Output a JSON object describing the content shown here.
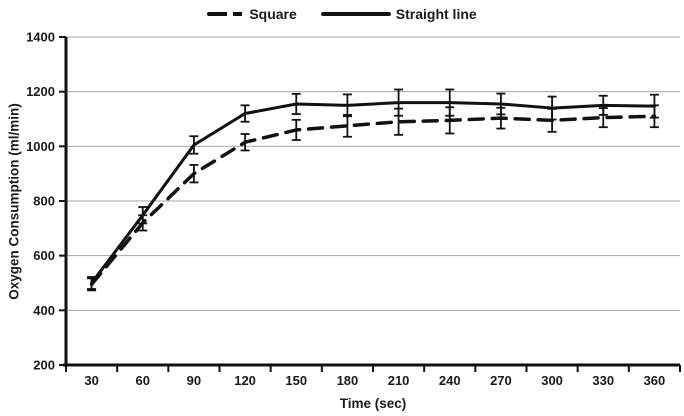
{
  "chart_data": {
    "type": "line",
    "title": "",
    "xlabel": "Time (sec)",
    "ylabel": "Oxygen Consumption (ml/min)",
    "categories": [
      "30",
      "60",
      "90",
      "120",
      "150",
      "180",
      "210",
      "240",
      "270",
      "300",
      "330",
      "360"
    ],
    "ylim": [
      200,
      1400
    ],
    "ytick_step": 200,
    "grid": "horizontal gridlines at every 200",
    "legend_position": "top-center",
    "error_bars": true,
    "series": [
      {
        "name": "Square",
        "style": "dashed",
        "color": "#111111",
        "values": [
          495,
          720,
          900,
          1015,
          1060,
          1075,
          1090,
          1095,
          1103,
          1095,
          1105,
          1110
        ],
        "errors": [
          22,
          28,
          32,
          30,
          37,
          40,
          48,
          48,
          38,
          42,
          35,
          40
        ]
      },
      {
        "name": "Straight line",
        "style": "solid",
        "color": "#111111",
        "values": [
          500,
          748,
          1005,
          1120,
          1155,
          1150,
          1160,
          1160,
          1155,
          1140,
          1150,
          1147
        ],
        "errors": [
          22,
          30,
          32,
          30,
          37,
          40,
          48,
          48,
          38,
          42,
          35,
          42
        ]
      }
    ]
  },
  "colors": {
    "line": "#111111",
    "grid": "#a6a6a6",
    "axis": "#111111",
    "background": "#ffffff",
    "text": "#1a1a1a"
  }
}
